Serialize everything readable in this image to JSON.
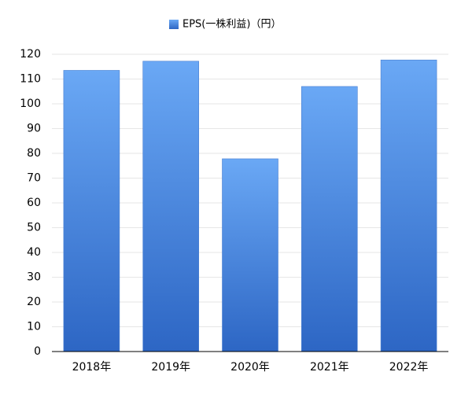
{
  "chart_data": {
    "type": "bar",
    "categories": [
      "2018年",
      "2019年",
      "2020年",
      "2021年",
      "2022年"
    ],
    "series": [
      {
        "name": "EPS(一株利益)（円）",
        "values": [
          113.5,
          117.2,
          77.8,
          107.0,
          117.7
        ]
      }
    ],
    "ylim": [
      0,
      120
    ],
    "yticks": [
      0,
      10,
      20,
      30,
      40,
      50,
      60,
      70,
      80,
      90,
      100,
      110,
      120
    ],
    "grid": true,
    "legend": "top-center",
    "colors": {
      "bar_top": "#6aa8f5",
      "bar_bottom": "#2d66c4",
      "bar_stroke": "#4a7fd0",
      "grid": "#e6e6e6",
      "axis": "#000000"
    }
  }
}
